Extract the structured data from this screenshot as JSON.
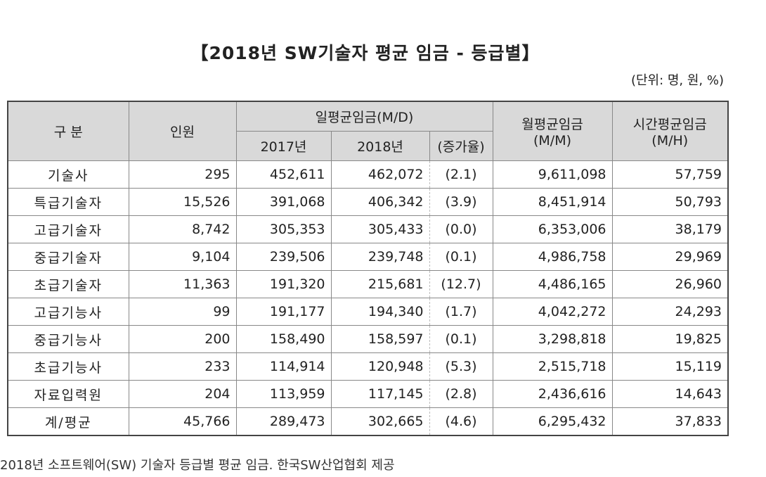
{
  "title": "【2018년 SW기술자 평균 임금 - 등급별】",
  "unit": "(단위: 명, 원, %)",
  "table": {
    "header": {
      "category": "구 분",
      "count": "인원",
      "daily": "일평균임금(M/D)",
      "y2017": "2017년",
      "y2018": "2018년",
      "rate": "(증가율)",
      "monthly": "월평균임금",
      "monthly_unit": "(M/M)",
      "hourly": "시간평균임금",
      "hourly_unit": "(M/H)"
    },
    "rows": [
      [
        "기술사",
        "295",
        "452,611",
        "462,072",
        "(2.1)",
        "9,611,098",
        "57,759"
      ],
      [
        "특급기술자",
        "15,526",
        "391,068",
        "406,342",
        "(3.9)",
        "8,451,914",
        "50,793"
      ],
      [
        "고급기술자",
        "8,742",
        "305,353",
        "305,433",
        "(0.0)",
        "6,353,006",
        "38,179"
      ],
      [
        "중급기술자",
        "9,104",
        "239,506",
        "239,748",
        "(0.1)",
        "4,986,758",
        "29,969"
      ],
      [
        "초급기술자",
        "11,363",
        "191,320",
        "215,681",
        "(12.7)",
        "4,486,165",
        "26,960"
      ],
      [
        "고급기능사",
        "99",
        "191,177",
        "194,340",
        "(1.7)",
        "4,042,272",
        "24,293"
      ],
      [
        "중급기능사",
        "200",
        "158,490",
        "158,597",
        "(0.1)",
        "3,298,818",
        "19,825"
      ],
      [
        "초급기능사",
        "233",
        "114,914",
        "120,948",
        "(5.3)",
        "2,515,718",
        "15,119"
      ],
      [
        "자료입력원",
        "204",
        "113,959",
        "117,145",
        "(2.8)",
        "2,436,616",
        "14,643"
      ],
      [
        "계/평균",
        "45,766",
        "289,473",
        "302,665",
        "(4.6)",
        "6,295,432",
        "37,833"
      ]
    ]
  },
  "caption": "2018년 소프트웨어(SW) 기술자 등급별 평균 임금. 한국SW산업협회 제공"
}
